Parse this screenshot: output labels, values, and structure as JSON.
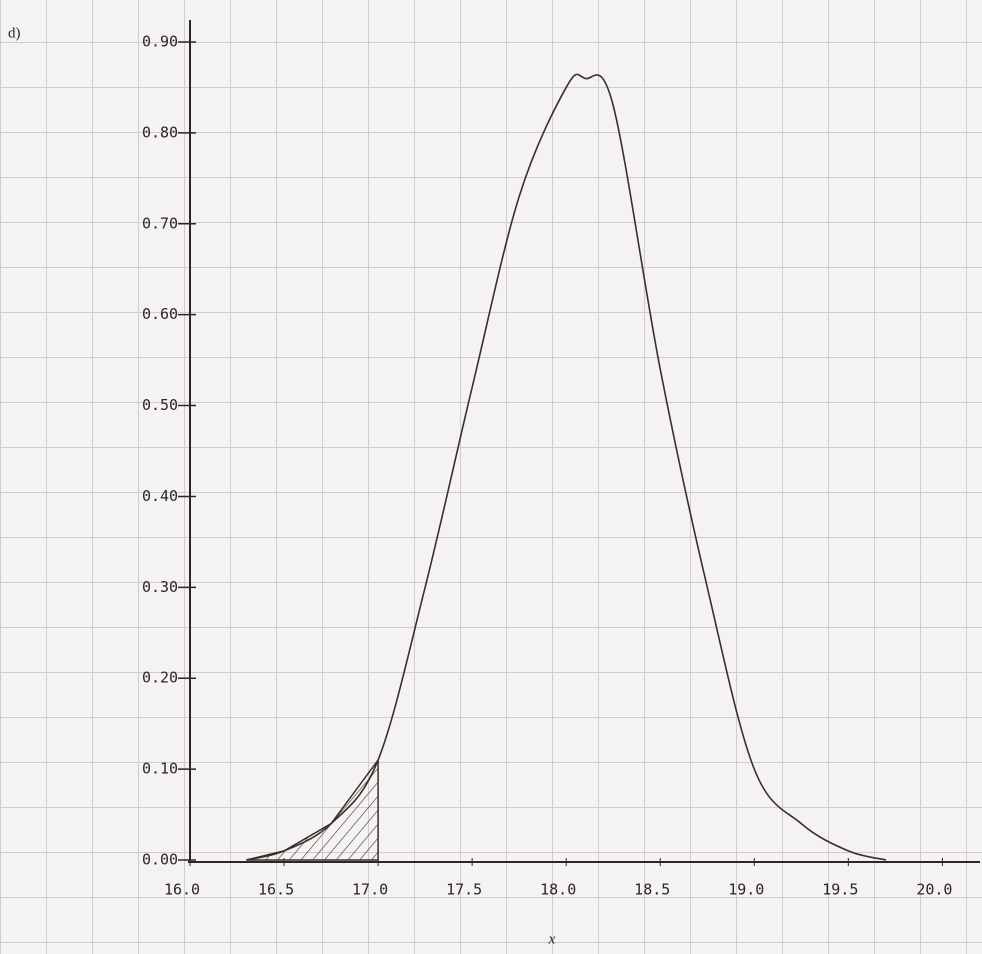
{
  "chart_data": {
    "type": "line",
    "annotation": "d)",
    "x_label": "x",
    "x": [
      16.3,
      16.5,
      16.75,
      17.0,
      17.25,
      17.5,
      17.75,
      18.0,
      18.1,
      18.25,
      18.5,
      18.75,
      19.0,
      19.25,
      19.5,
      19.7
    ],
    "values": [
      0.0,
      0.01,
      0.04,
      0.11,
      0.3,
      0.52,
      0.73,
      0.85,
      0.86,
      0.83,
      0.54,
      0.3,
      0.1,
      0.04,
      0.01,
      0.0
    ],
    "color": "#3a2f2f",
    "shade_to": 17.0,
    "xlim": [
      16.0,
      20.2
    ],
    "xticks": [
      {
        "value": 16.0,
        "label": "16.0"
      },
      {
        "value": 16.5,
        "label": "16.5"
      },
      {
        "value": 17.0,
        "label": "17.0"
      },
      {
        "value": 17.5,
        "label": "17.5"
      },
      {
        "value": 18.0,
        "label": "18.0"
      },
      {
        "value": 18.5,
        "label": "18.5"
      },
      {
        "value": 19.0,
        "label": "19.0"
      },
      {
        "value": 19.5,
        "label": "19.5"
      },
      {
        "value": 20.0,
        "label": "20.0"
      }
    ],
    "ylim": [
      0.0,
      0.9
    ],
    "yticks": [
      {
        "value": 0.0,
        "label": "0.00"
      },
      {
        "value": 0.1,
        "label": "0.10"
      },
      {
        "value": 0.2,
        "label": "0.20"
      },
      {
        "value": 0.3,
        "label": "0.30"
      },
      {
        "value": 0.4,
        "label": "0.40"
      },
      {
        "value": 0.5,
        "label": "0.50"
      },
      {
        "value": 0.6,
        "label": "0.60"
      },
      {
        "value": 0.7,
        "label": "0.70"
      },
      {
        "value": 0.8,
        "label": "0.80"
      },
      {
        "value": 0.9,
        "label": "0.90"
      }
    ]
  }
}
